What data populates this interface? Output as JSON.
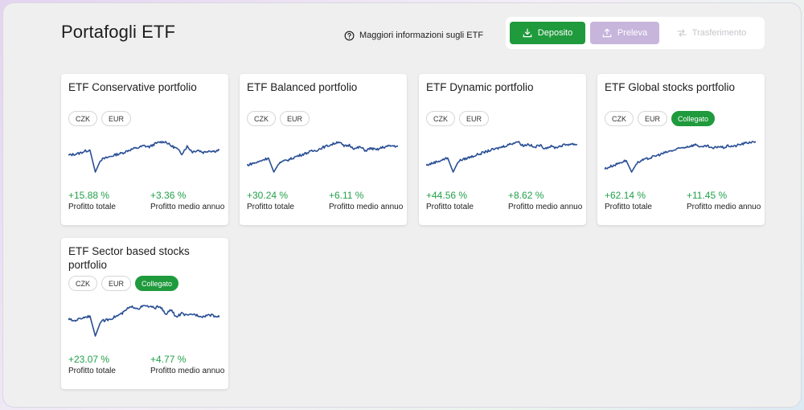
{
  "header": {
    "title": "Portafogli ETF",
    "info_link": "Maggiori informazioni sugli ETF",
    "info_icon": "question-circle-icon"
  },
  "actions": {
    "deposit": "Deposito",
    "withdraw": "Preleva",
    "transfer": "Trasferimento"
  },
  "colors": {
    "accent_green": "#1f9a3c",
    "disabled_purple": "#c7b5dc",
    "positive": "#22a04a",
    "chart_line": "#2a4f96"
  },
  "labels": {
    "total_profit": "Profitto totale",
    "avg_profit": "Profitto medio annuo"
  },
  "portfolios": [
    {
      "name": "ETF Conservative portfolio",
      "tags": [
        "CZK",
        "EUR"
      ],
      "linked": "",
      "total_profit": "+15.88 %",
      "avg_profit": "+3.36 %",
      "chart_data": {
        "type": "line",
        "values": [
          0.55,
          0.58,
          0.61,
          0.68,
          0.72,
          0.0,
          0.4,
          0.46,
          0.52,
          0.58,
          0.62,
          0.7,
          0.76,
          0.8,
          0.86,
          0.82,
          0.92,
          0.98,
          1.0,
          0.86,
          0.78,
          0.6,
          0.84,
          0.66,
          0.72,
          0.64,
          0.7,
          0.68,
          0.72
        ]
      }
    },
    {
      "name": "ETF Balanced portfolio",
      "tags": [
        "CZK",
        "EUR"
      ],
      "linked": "",
      "total_profit": "+30.24 %",
      "avg_profit": "+6.11 %",
      "chart_data": {
        "type": "line",
        "values": [
          0.22,
          0.28,
          0.32,
          0.4,
          0.46,
          0.0,
          0.3,
          0.36,
          0.42,
          0.5,
          0.56,
          0.62,
          0.68,
          0.72,
          0.8,
          0.86,
          0.92,
          1.0,
          0.84,
          0.88,
          0.76,
          0.82,
          0.7,
          0.78,
          0.72,
          0.8,
          0.84,
          0.86,
          0.84
        ]
      }
    },
    {
      "name": "ETF Dynamic portfolio",
      "tags": [
        "CZK",
        "EUR"
      ],
      "linked": "",
      "total_profit": "+44.56 %",
      "avg_profit": "+8.62 %",
      "chart_data": {
        "type": "line",
        "values": [
          0.22,
          0.28,
          0.34,
          0.4,
          0.46,
          0.0,
          0.36,
          0.42,
          0.48,
          0.54,
          0.6,
          0.66,
          0.72,
          0.76,
          0.82,
          0.88,
          0.94,
          1.0,
          0.86,
          0.92,
          0.8,
          0.88,
          0.78,
          0.84,
          0.8,
          0.86,
          0.9,
          0.92,
          0.9
        ]
      }
    },
    {
      "name": "ETF Global stocks portfolio",
      "tags": [
        "CZK",
        "EUR"
      ],
      "linked": "Collegato",
      "total_profit": "+62.14 %",
      "avg_profit": "+11.45 %",
      "chart_data": {
        "type": "line",
        "values": [
          0.1,
          0.18,
          0.24,
          0.32,
          0.38,
          0.0,
          0.3,
          0.38,
          0.44,
          0.5,
          0.56,
          0.62,
          0.68,
          0.72,
          0.78,
          0.82,
          0.86,
          0.9,
          0.8,
          0.86,
          0.76,
          0.84,
          0.8,
          0.86,
          0.84,
          0.9,
          0.94,
          0.98,
          1.0
        ]
      }
    },
    {
      "name": "ETF Sector based stocks portfolio",
      "tags": [
        "CZK",
        "EUR"
      ],
      "linked": "Collegato",
      "total_profit": "+23.07 %",
      "avg_profit": "+4.77 %",
      "chart_data": {
        "type": "line",
        "values": [
          0.55,
          0.5,
          0.56,
          0.62,
          0.66,
          0.0,
          0.48,
          0.52,
          0.58,
          0.66,
          0.74,
          0.9,
          0.96,
          0.9,
          1.0,
          0.96,
          0.92,
          0.98,
          0.7,
          0.86,
          0.62,
          0.74,
          0.66,
          0.72,
          0.68,
          0.64,
          0.7,
          0.66,
          0.62
        ]
      }
    }
  ]
}
